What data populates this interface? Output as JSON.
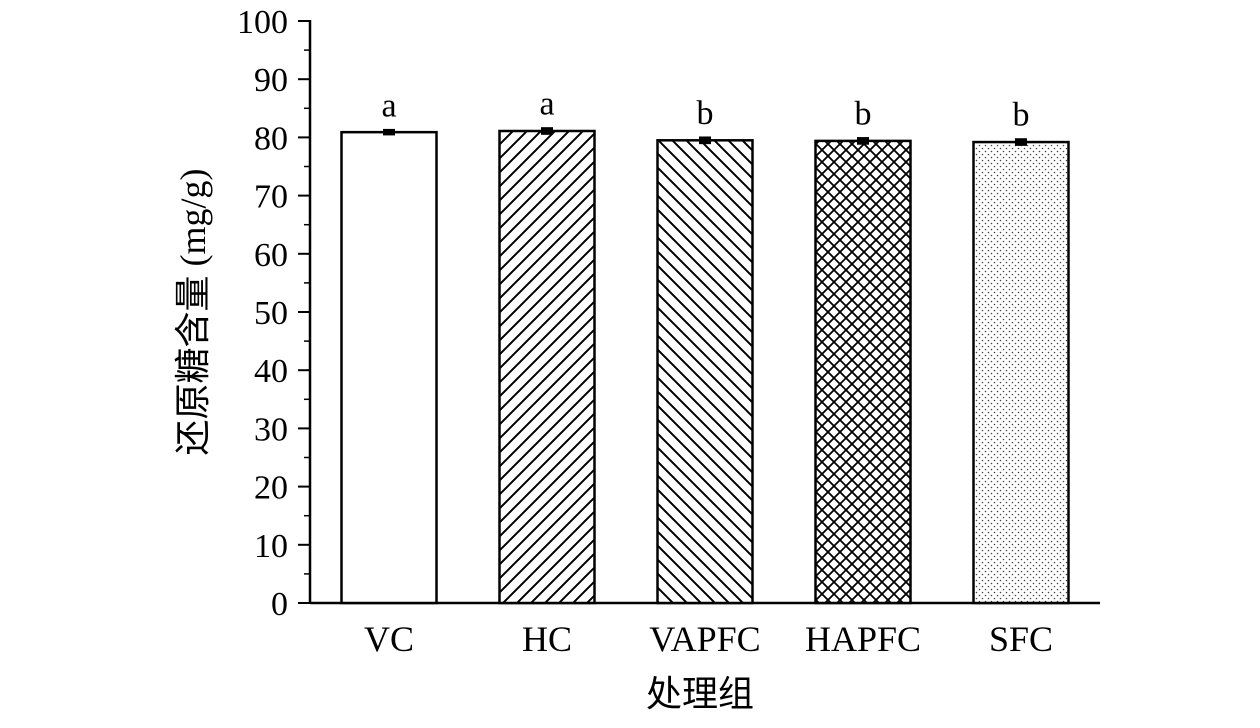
{
  "chart_data": {
    "type": "bar",
    "title": "",
    "xlabel": "处理组",
    "ylabel": "还原糖含量 (mg/g)",
    "ylim": [
      0,
      100
    ],
    "yticks": [
      "0",
      "10",
      "20",
      "30",
      "40",
      "50",
      "60",
      "70",
      "80",
      "90",
      "100"
    ],
    "categories": [
      "VC",
      "HC",
      "VAPFC",
      "HAPFC",
      "SFC"
    ],
    "values": [
      80.9,
      81.1,
      79.5,
      79.4,
      79.2
    ],
    "errors": [
      0.3,
      0.4,
      0.4,
      0.4,
      0.4
    ],
    "significance": [
      "a",
      "a",
      "b",
      "b",
      "b"
    ],
    "patterns": [
      "none",
      "diagonal-forward",
      "diagonal-back",
      "crosshatch",
      "dots"
    ],
    "grid": false,
    "legend": "none"
  }
}
